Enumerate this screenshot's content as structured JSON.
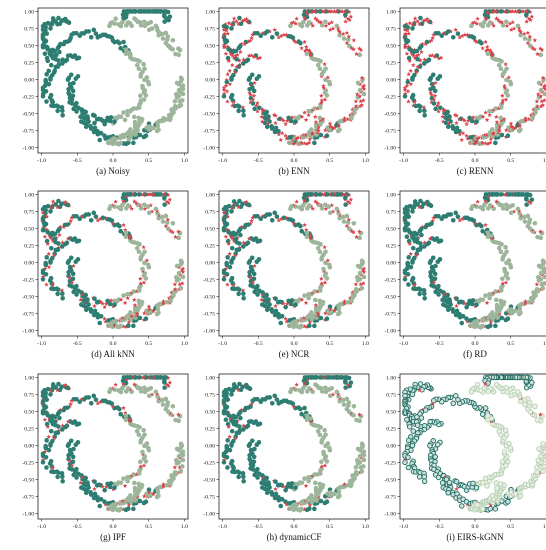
{
  "colors": {
    "dark": "#2e7d72",
    "light": "#9db59a",
    "noise": "#d9434a",
    "frame": "#222222",
    "ring_dark": "#1f6b62",
    "ring_light": "#b7cfb3"
  },
  "panels": [
    {
      "caption": "(a) Noisy",
      "method": "Noisy",
      "noise_fraction": 0.0,
      "style": "solid"
    },
    {
      "caption": "(b) ENN",
      "method": "ENN",
      "noise_fraction": 0.55,
      "style": "solid"
    },
    {
      "caption": "(c) RENN",
      "method": "RENN",
      "noise_fraction": 0.55,
      "style": "solid"
    },
    {
      "caption": "(d) All kNN",
      "method": "All kNN",
      "noise_fraction": 0.35,
      "style": "solid"
    },
    {
      "caption": "(e) NCR",
      "method": "NCR",
      "noise_fraction": 0.3,
      "style": "solid"
    },
    {
      "caption": "(f) RD",
      "method": "RD",
      "noise_fraction": 0.15,
      "style": "solid"
    },
    {
      "caption": "(g) IPF",
      "method": "IPF",
      "noise_fraction": 0.2,
      "style": "solid"
    },
    {
      "caption": "(h) dynamicCF",
      "method": "dynamicCF",
      "noise_fraction": 0.12,
      "style": "solid"
    },
    {
      "caption": "(i) EIRS-kGNN",
      "method": "EIRS-kGNN",
      "noise_fraction": 0.03,
      "style": "ring"
    }
  ],
  "chart_data": {
    "type": "scatter",
    "layout": "3x3 grid",
    "xlim": [
      -1.05,
      1.05
    ],
    "ylim": [
      -1.08,
      1.05
    ],
    "xticks": [
      -1.0,
      -0.5,
      0.0,
      0.5,
      1.0
    ],
    "yticks": [
      1.0,
      0.75,
      0.5,
      0.25,
      0.0,
      -0.25,
      -0.5,
      -0.75,
      -1.0
    ],
    "xtick_labels": [
      "-1.0",
      "-0.5",
      "0.0",
      "0.5",
      "1.0"
    ],
    "ytick_labels": [
      "1.00",
      "0.75",
      "0.50",
      "0.25",
      "0.00",
      "-0.25",
      "-0.50",
      "-0.75",
      "-1.00"
    ],
    "grid": false,
    "arcs": [
      {
        "class": "dark",
        "cx": -0.3,
        "cy": 0.05,
        "r": 0.62,
        "from_deg": 30,
        "to_deg": 160
      },
      {
        "class": "light",
        "cx": -0.1,
        "cy": -0.05,
        "r": 0.55,
        "from_deg": -80,
        "to_deg": 60
      },
      {
        "class": "dark",
        "cx": -0.15,
        "cy": -0.15,
        "r": 0.45,
        "from_deg": 150,
        "to_deg": 290
      },
      {
        "class": "light",
        "cx": 0.2,
        "cy": 0.1,
        "r": 0.75,
        "from_deg": 20,
        "to_deg": 110
      },
      {
        "class": "dark",
        "cx": 0.1,
        "cy": -0.35,
        "r": 0.55,
        "from_deg": 190,
        "to_deg": 330
      },
      {
        "class": "light",
        "cx": 0.25,
        "cy": -0.1,
        "r": 0.7,
        "from_deg": -70,
        "to_deg": 10
      },
      {
        "class": "dark",
        "cx": -0.55,
        "cy": -0.1,
        "r": 0.4,
        "from_deg": 80,
        "to_deg": 250
      },
      {
        "class": "dark",
        "cx": 0.45,
        "cy": 0.85,
        "r": 0.3,
        "from_deg": 0,
        "to_deg": 170
      },
      {
        "class": "light",
        "cx": 0.0,
        "cy": -0.55,
        "r": 0.35,
        "from_deg": 260,
        "to_deg": 360
      },
      {
        "class": "dark",
        "cx": -0.75,
        "cy": 0.6,
        "r": 0.25,
        "from_deg": 60,
        "to_deg": 260
      }
    ],
    "points_per_arc": 44,
    "marker": "circle",
    "noise_marker": "star"
  }
}
